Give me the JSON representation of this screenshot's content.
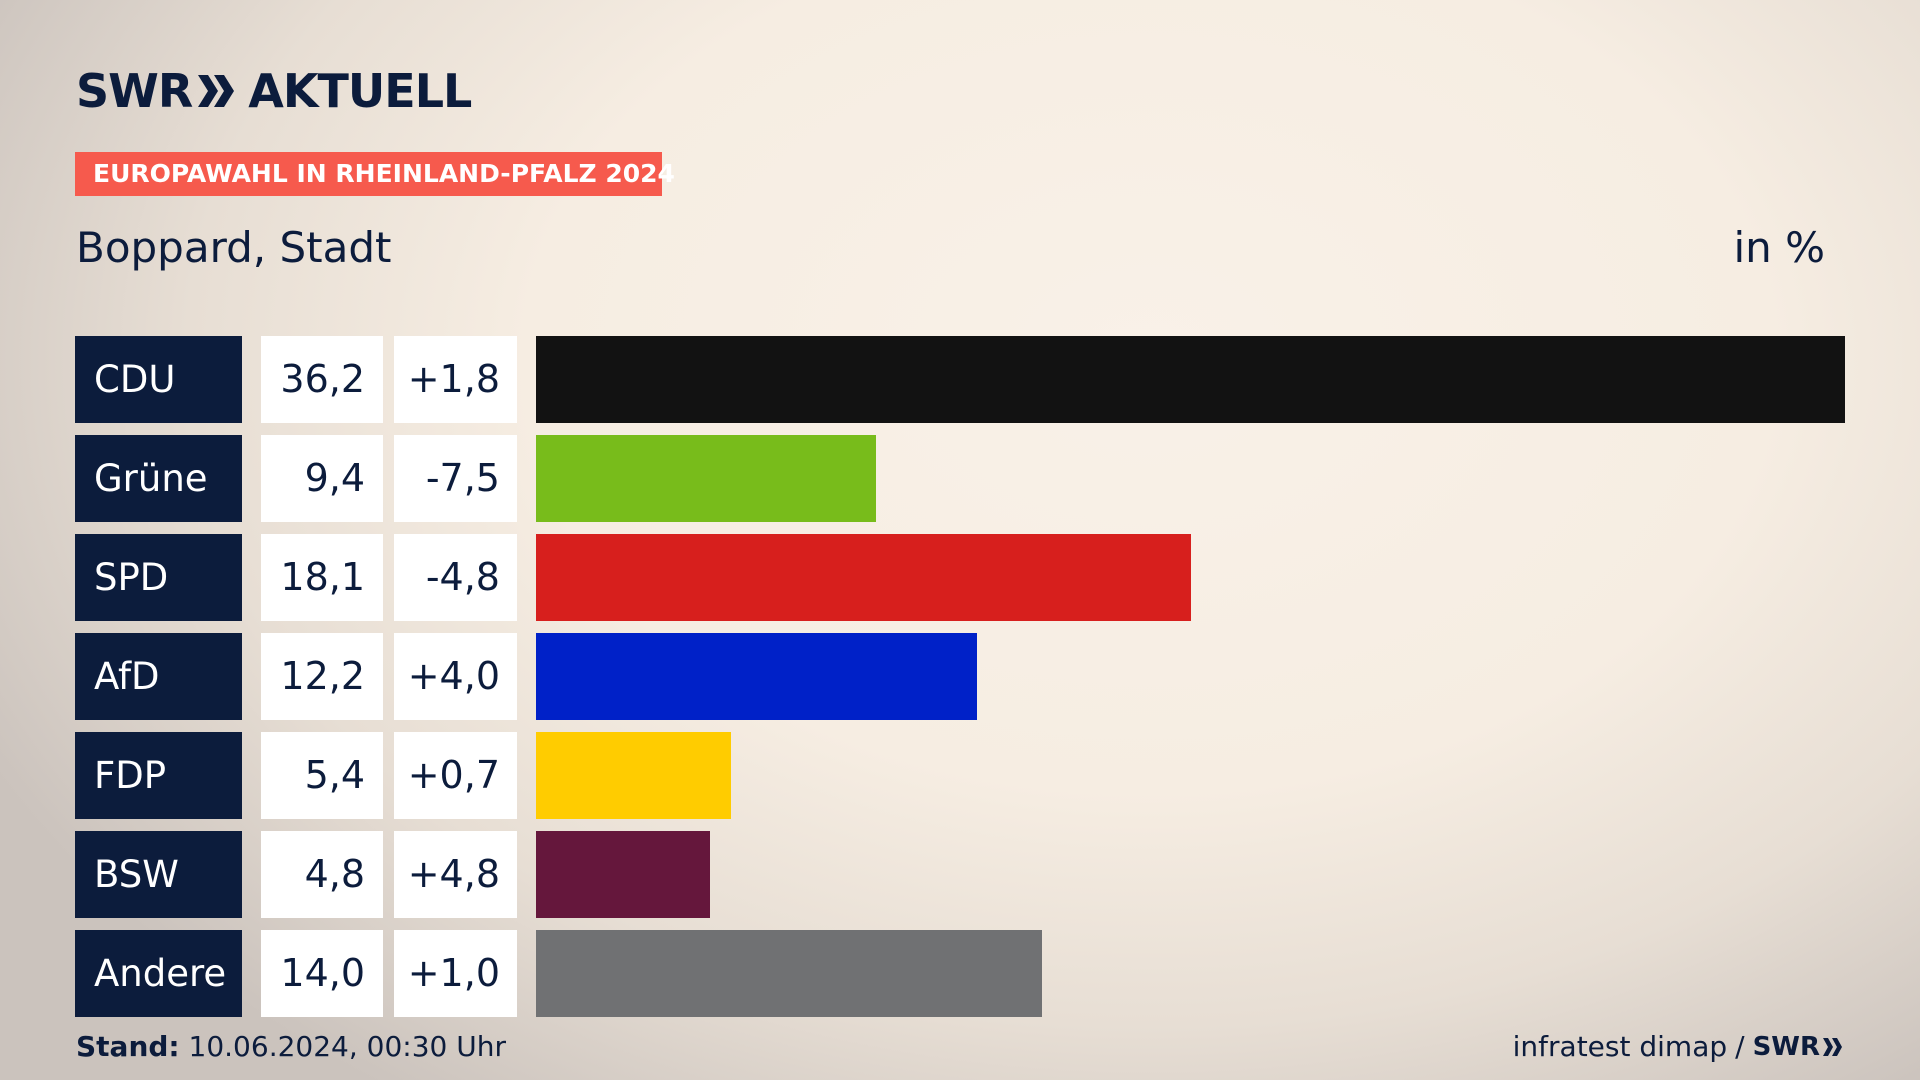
{
  "header": {
    "brand": "SWR",
    "brand_suffix": "AKTUELL",
    "kicker": "EUROPAWAHL IN RHEINLAND-PFALZ 2024",
    "title": "Boppard, Stadt",
    "unit": "in %"
  },
  "chart_data": {
    "type": "bar",
    "orientation": "horizontal",
    "categories": [
      "CDU",
      "Grüne",
      "SPD",
      "AfD",
      "FDP",
      "BSW",
      "Andere"
    ],
    "values": [
      36.2,
      9.4,
      18.1,
      12.2,
      5.4,
      4.8,
      14.0
    ],
    "value_labels": [
      "36,2",
      "9,4",
      "18,1",
      "12,2",
      "5,4",
      "4,8",
      "14,0"
    ],
    "diffs": [
      1.8,
      -7.5,
      -4.8,
      4.0,
      0.7,
      4.8,
      1.0
    ],
    "diff_labels": [
      "+1,8",
      "-7,5",
      "-4,8",
      "+4,0",
      "+0,7",
      "+4,8",
      "+1,0"
    ],
    "colors": [
      "#121212",
      "#78bc1b",
      "#d71f1d",
      "#0021c8",
      "#ffcc00",
      "#65173c",
      "#707173"
    ],
    "xlim": [
      0,
      36.2
    ]
  },
  "footer": {
    "stand_label": "Stand:",
    "stand_value": "10.06.2024, 00:30 Uhr",
    "source": "infratest dimap",
    "separator": "/",
    "source_brand": "SWR"
  }
}
